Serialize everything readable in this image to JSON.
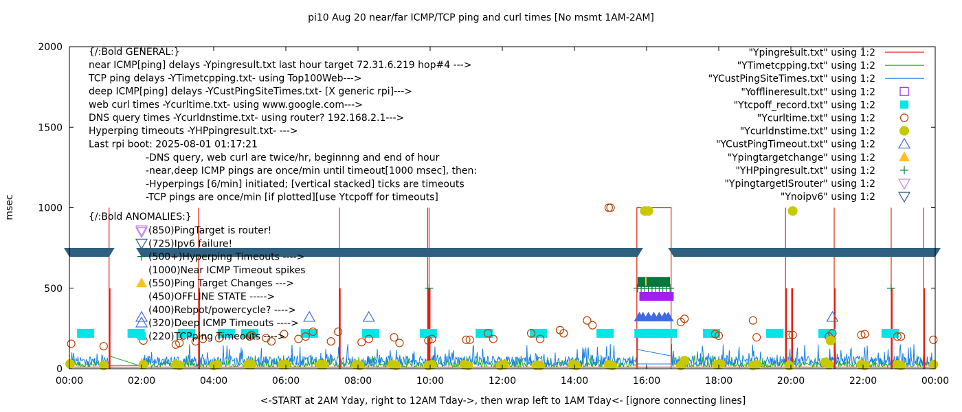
{
  "chart_data": {
    "type": "scatter",
    "title": "pi10 Aug 20  near/far ICMP/TCP ping and curl times [No msmt 1AM-2AM]",
    "xlabel": "<-START at 2AM Yday, right to 12AM Tday->, then wrap left to 1AM Tday<- [ignore connecting lines]",
    "ylabel": "msec",
    "xlim": [
      0,
      24
    ],
    "ylim": [
      0,
      2000
    ],
    "x_unit": "hours",
    "grid": false,
    "legend_position": "top-right",
    "x_ticks": [
      {
        "value": 0,
        "label": "00:00"
      },
      {
        "value": 2,
        "label": "02:00"
      },
      {
        "value": 4,
        "label": "04:00"
      },
      {
        "value": 6,
        "label": "06:00"
      },
      {
        "value": 8,
        "label": "08:00"
      },
      {
        "value": 10,
        "label": "10:00"
      },
      {
        "value": 12,
        "label": "12:00"
      },
      {
        "value": 14,
        "label": "14:00"
      },
      {
        "value": 16,
        "label": "16:00"
      },
      {
        "value": 18,
        "label": "18:00"
      },
      {
        "value": 20,
        "label": "20:00"
      },
      {
        "value": 22,
        "label": "22:00"
      },
      {
        "value": 24,
        "label": "00:00"
      }
    ],
    "y_ticks": [
      {
        "value": 0,
        "label": "0"
      },
      {
        "value": 500,
        "label": "500"
      },
      {
        "value": 1000,
        "label": "1000"
      },
      {
        "value": 1500,
        "label": "1500"
      },
      {
        "value": 2000,
        "label": "2000"
      }
    ],
    "annotations": {
      "general_lines": [
        "{/:Bold GENERAL:}",
        "near ICMP[ping] delays -Ypingresult.txt last hour target 72.31.6.219 hop#4 --->",
        "TCP ping delays -YTimetcpping.txt- using Top100Web--->",
        "deep ICMP[ping] delays -YCustPingSiteTimes.txt- [X generic rpi]--->",
        "web curl times -Ycurltime.txt- using www.google.com--->",
        "DNS query times -Ycurldnstime.txt- using router? 192.168.2.1--->",
        "Hyperping timeouts -YHPpingresult.txt- --->",
        "Last rpi boot: 2025-08-01 01:17:21"
      ],
      "notes_lines": [
        "-DNS query, web curl are twice/hr, beginnng and end of hour",
        "-near,deep ICMP pings are once/min until timeout[1000 msec], then:",
        "  -Hyperpings [6/min] initiated; [vertical stacked] ticks are timeouts",
        "-TCP pings are once/min [if plotted][use Ytcpoff for timeouts]"
      ],
      "anomalies_title": "{/:Bold ANOMALIES:}",
      "anomalies": [
        {
          "text": "(850)PingTarget is router!",
          "marker": "down-triangle-violet"
        },
        {
          "text": "(725)Ipv6 failure!",
          "marker": "down-triangle-navy"
        },
        {
          "text": "(500+)Hyperping Timeouts ---->",
          "marker": "plus-green"
        },
        {
          "text": "(1000)Near ICMP Timeout spikes",
          "marker": "none"
        },
        {
          "text": "(550)Ping Target Changes --->",
          "marker": "filled-triangle-orange"
        },
        {
          "text": "(450)OFFLINE STATE ----->",
          "marker": "none"
        },
        {
          "text": "(400)Rebpot/powercycle? ---->",
          "marker": "none"
        },
        {
          "text": "(320)Deep ICMP Timeouts ---->",
          "marker": "up-triangle-blue"
        },
        {
          "text": "(220)TCPping Timeouts ---->",
          "marker": "filled-square-cyan"
        }
      ]
    },
    "legend": [
      {
        "label": "\"Ypingresult.txt\" using 1:2",
        "kind": "line",
        "color": "#e51e10"
      },
      {
        "label": "\"YTimetcpping.txt\" using 1:2",
        "kind": "line",
        "color": "#1db41d"
      },
      {
        "label": "\"YCustPingSiteTimes.txt\" using 1:2",
        "kind": "line",
        "color": "#1a7fe6"
      },
      {
        "label": "\"Yofflineresult.txt\" using 1:2",
        "kind": "open-square",
        "color": "#a020f0"
      },
      {
        "label": "\"Ytcpoff_record.txt\" using 1:2",
        "kind": "filled-square",
        "color": "#00e5e5"
      },
      {
        "label": "\"Ycurltime.txt\" using 1:2",
        "kind": "open-circle",
        "color": "#b84000"
      },
      {
        "label": "\"Ycurldnstime.txt\" using 1:2",
        "kind": "filled-circle",
        "color": "#c8c800"
      },
      {
        "label": "\"YCustPingTimeout.txt\" using 1:2",
        "kind": "open-up-triangle",
        "color": "#4169e1"
      },
      {
        "label": "\"Ypingtargetchange\" using 1:2",
        "kind": "filled-up-triangle",
        "color": "#ffc020"
      },
      {
        "label": "\"YHPpingresult.txt\" using 1:2",
        "kind": "plus",
        "color": "#007840"
      },
      {
        "label": "\"YpingtargetISrouter\" using 1:2",
        "kind": "open-down-triangle",
        "color": "#c080ff"
      },
      {
        "label": "\"Ynoipv6\" using 1:2",
        "kind": "open-down-triangle",
        "color": "#306080"
      }
    ],
    "series": {
      "near_icmp_spikes": {
        "name": "Ypingresult.txt",
        "color": "#e51e10",
        "x": [
          1.1,
          3.58,
          7.48,
          9.93,
          9.97,
          19.85,
          20.02,
          21.2,
          22.78,
          23.68
        ],
        "values": [
          1000,
          1000,
          1000,
          1000,
          1000,
          1000,
          500,
          1000,
          1000,
          1000
        ],
        "baseline": 10
      },
      "near_icmp_outage": {
        "name": "Ypingresult.txt outage block",
        "color": "#e51e10",
        "x": [
          15.73,
          15.73,
          16.68,
          16.68
        ],
        "values": [
          0,
          1000,
          1000,
          0
        ]
      },
      "tcp_ping_baseline": {
        "name": "YTimetcpping.txt",
        "color": "#1db41d",
        "level": 20,
        "noise_max": 80
      },
      "deep_icmp_baseline": {
        "name": "YCustPingSiteTimes.txt",
        "color": "#1a7fe6",
        "level": 40,
        "noise_max": 140
      },
      "offline": {
        "name": "Yofflineresult.txt",
        "color": "#a020f0",
        "x_range": [
          15.8,
          16.75
        ],
        "value": 450
      },
      "tcp_timeouts": {
        "name": "Ytcpoff_record.txt",
        "color": "#00e5e5",
        "x": [
          0.45,
          1.85,
          3.25,
          4.35,
          5.0,
          6.65,
          8.35,
          9.95,
          11.5,
          13.0,
          14.85,
          15.9,
          16.1,
          16.35,
          16.6,
          17.8,
          19.55,
          21.0,
          22.75
        ],
        "values": [
          220,
          220,
          220,
          220,
          220,
          220,
          220,
          220,
          220,
          220,
          220,
          220,
          220,
          220,
          220,
          220,
          220,
          220,
          220
        ]
      },
      "curl_times": {
        "name": "Ycurltime.txt",
        "color": "#b84000",
        "x": [
          0.05,
          0.95,
          2.05,
          2.95,
          3.05,
          3.5,
          3.7,
          4.15,
          5.0,
          5.05,
          5.45,
          5.6,
          5.95,
          6.35,
          6.55,
          6.75,
          7.25,
          7.45,
          8.1,
          8.3,
          9.0,
          9.15,
          9.95,
          10.05,
          11.0,
          11.1,
          11.6,
          11.75,
          12.8,
          13.05,
          13.6,
          13.7,
          14.35,
          14.5,
          14.95,
          15.0,
          16.95,
          17.05,
          17.9,
          18.0,
          18.95,
          19.05,
          19.95,
          20.05,
          21.05,
          21.15,
          21.95,
          22.05,
          22.95,
          23.05,
          23.95
        ],
        "values": [
          155,
          140,
          175,
          150,
          160,
          170,
          185,
          190,
          200,
          210,
          190,
          170,
          215,
          185,
          200,
          230,
          170,
          230,
          165,
          185,
          195,
          160,
          175,
          185,
          180,
          180,
          220,
          185,
          220,
          185,
          240,
          220,
          300,
          270,
          1000,
          1000,
          290,
          310,
          215,
          205,
          300,
          195,
          210,
          210,
          200,
          220,
          210,
          215,
          200,
          200,
          180
        ]
      },
      "dns_times": {
        "name": "Ycurldnstime.txt",
        "color": "#c8c800",
        "x": [
          0.02,
          0.95,
          2.05,
          2.95,
          3.05,
          4.0,
          4.1,
          4.95,
          5.05,
          5.9,
          6.0,
          6.95,
          7.05,
          7.95,
          8.05,
          8.95,
          9.05,
          9.95,
          10.05,
          10.95,
          11.05,
          11.95,
          12.05,
          12.95,
          13.05,
          13.95,
          14.05,
          14.95,
          15.05,
          15.95,
          16.05,
          16.95,
          17.05,
          17.95,
          18.05,
          18.95,
          19.05,
          19.95,
          20.05,
          20.95,
          21.05,
          21.1,
          21.95,
          22.05,
          22.95,
          23.05,
          23.95
        ],
        "values": [
          30,
          20,
          25,
          25,
          20,
          20,
          25,
          25,
          25,
          25,
          25,
          25,
          25,
          25,
          20,
          25,
          20,
          20,
          25,
          25,
          20,
          20,
          25,
          20,
          20,
          25,
          20,
          25,
          20,
          980,
          980,
          20,
          50,
          25,
          30,
          20,
          25,
          20,
          980,
          40,
          25,
          175,
          25,
          20,
          25,
          20,
          25
        ]
      },
      "deep_icmp_timeouts": {
        "name": "YCustPingTimeout.txt",
        "color": "#4169e1",
        "x": [
          2.0,
          6.65,
          8.3,
          15.8,
          15.9,
          16.05,
          16.2,
          16.35,
          16.5,
          16.6,
          21.15
        ],
        "values": [
          320,
          320,
          320,
          320,
          320,
          320,
          320,
          320,
          320,
          320,
          320
        ]
      },
      "ping_target_changes": {
        "name": "Ypingtargetchange",
        "color": "#ffc020",
        "x": [
          15.98
        ],
        "values": [
          550
        ]
      },
      "hyperping_timeouts": {
        "name": "YHPpingresult.txt",
        "color": "#007840",
        "x": [
          9.97,
          15.75,
          15.85,
          15.95,
          16.05,
          16.15,
          16.25,
          16.35,
          16.45,
          16.55,
          16.65,
          22.78
        ],
        "values": [
          500,
          500,
          500,
          500,
          500,
          500,
          500,
          500,
          500,
          500,
          500,
          500
        ]
      },
      "target_is_router": {
        "name": "YpingtargetISrouter",
        "color": "#c080ff",
        "x": [
          2.0
        ],
        "values": [
          850
        ]
      },
      "no_ipv6": {
        "name": "Ynoipv6",
        "color": "#306080",
        "x_ranges": [
          [
            0.0,
            1.1
          ],
          [
            2.0,
            15.75
          ],
          [
            16.75,
            24.0
          ]
        ],
        "value": 725
      }
    }
  }
}
